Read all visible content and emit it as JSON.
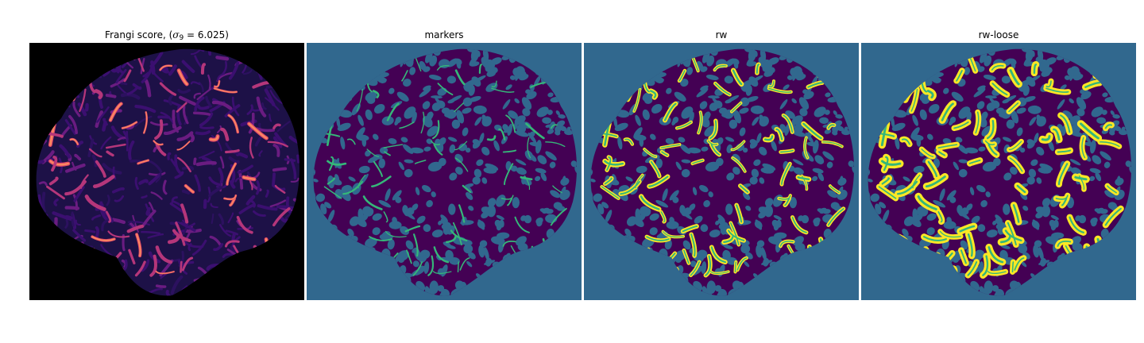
{
  "panels": [
    {
      "id": "frangi",
      "title_prefix": "Frangi score, (",
      "title_symbol": "σ",
      "title_subscript": "9",
      "title_suffix": " = 6.025)",
      "colormap": "magma",
      "background": "#000000"
    },
    {
      "id": "markers",
      "title": "markers",
      "colormap": "viridis",
      "background": "#31688e"
    },
    {
      "id": "rw",
      "title": "rw",
      "colormap": "viridis",
      "background": "#31688e"
    },
    {
      "id": "rw-loose",
      "title": "rw-loose",
      "colormap": "viridis",
      "background": "#31688e"
    }
  ],
  "colors": {
    "tissue_dark": "#440154",
    "vessel_mid": "#35b779",
    "vessel_bright": "#fde725",
    "frangi_purple": "#3b0f70",
    "frangi_magenta": "#b5367a",
    "frangi_orange": "#fb8861",
    "frangi_yellow": "#fcfdbf"
  }
}
